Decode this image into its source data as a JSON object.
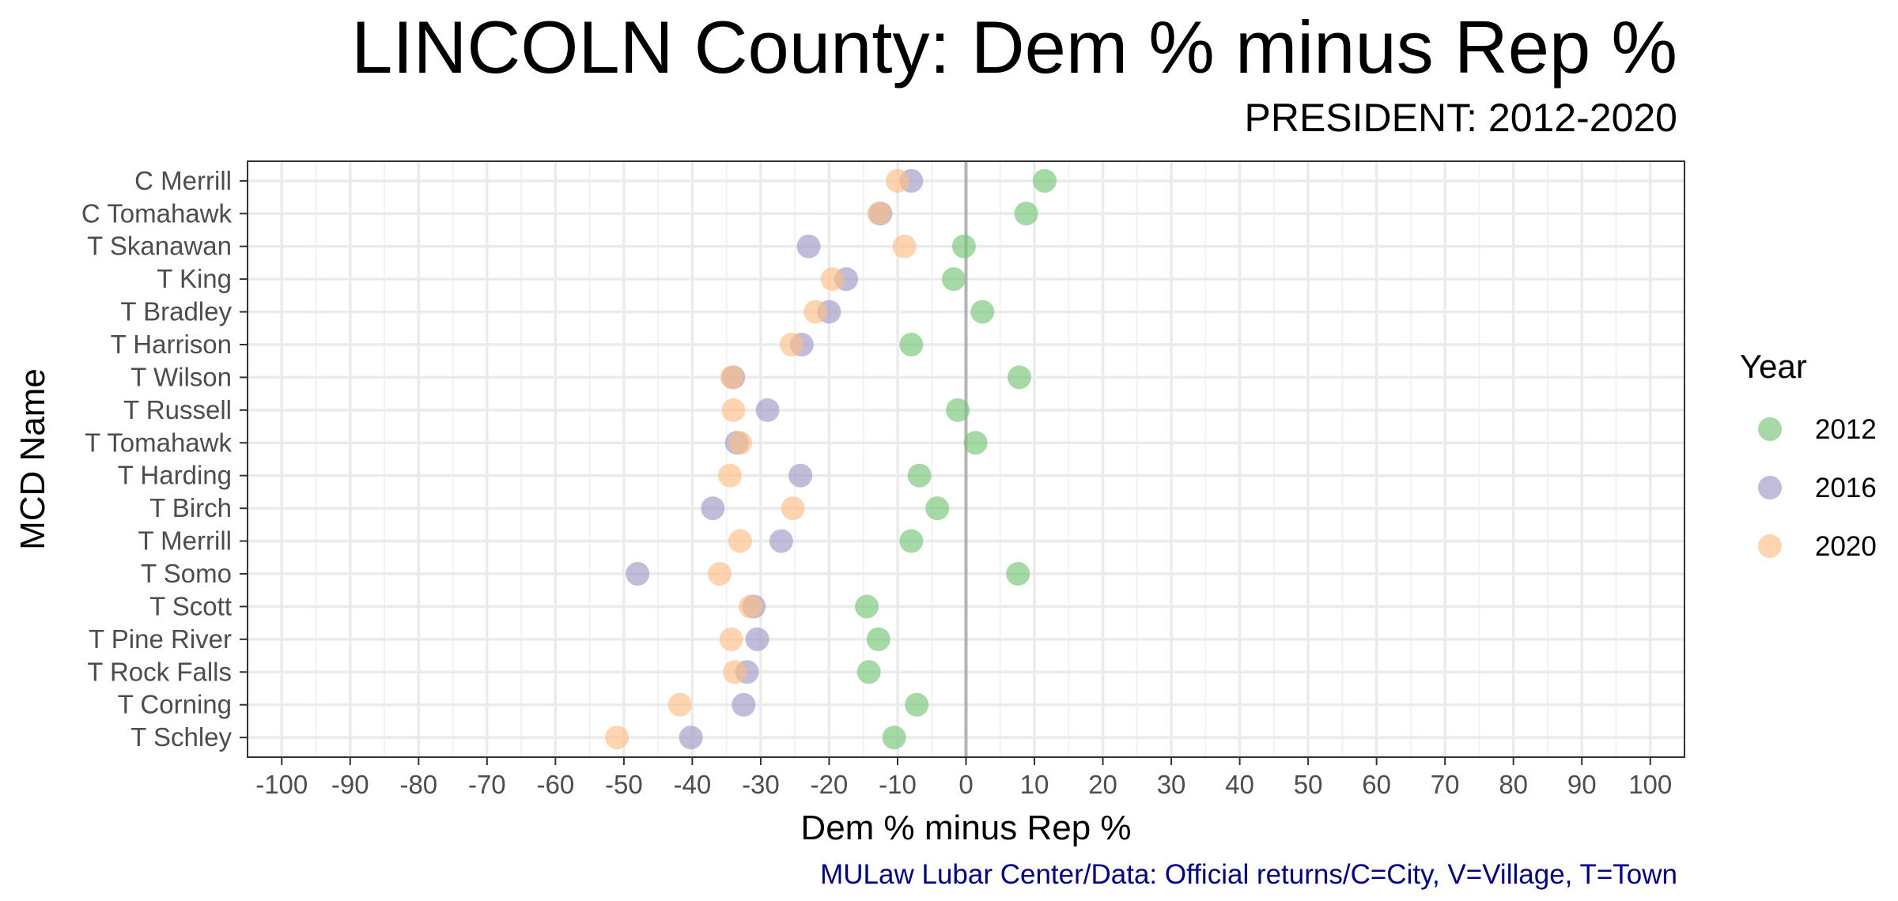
{
  "title": "LINCOLN County: Dem % minus Rep %",
  "subtitle": "PRESIDENT: 2012-2020",
  "caption": "MULaw Lubar Center/Data: Official returns/C=City, V=Village, T=Town",
  "chart_data": {
    "type": "scatter",
    "xlabel": "Dem % minus Rep %",
    "ylabel": "MCD Name",
    "xlim": [
      -105,
      105
    ],
    "x_ticks": [
      -100,
      -90,
      -80,
      -70,
      -60,
      -50,
      -40,
      -30,
      -20,
      -10,
      0,
      10,
      20,
      30,
      40,
      50,
      60,
      70,
      80,
      90,
      100
    ],
    "categories": [
      "C Merrill",
      "C Tomahawk",
      "T Skanawan",
      "T King",
      "T Bradley",
      "T Harrison",
      "T Wilson",
      "T Russell",
      "T Tomahawk",
      "T Harding",
      "T Birch",
      "T Merrill",
      "T Somo",
      "T Scott",
      "T Pine River",
      "T Rock Falls",
      "T Corning",
      "T Schley"
    ],
    "reference_line_x": 0,
    "grid": true,
    "legend": {
      "title": "Year",
      "position": "right"
    },
    "series": [
      {
        "name": "2012",
        "color": "#74c476",
        "values": [
          11.5,
          8.8,
          -0.3,
          -1.8,
          2.4,
          -8,
          7.8,
          -1.2,
          1.4,
          -6.8,
          -4.2,
          -8,
          7.6,
          -14.5,
          -12.8,
          -14.2,
          -7.2,
          -10.5
        ]
      },
      {
        "name": "2016",
        "color": "#9e9ac8",
        "values": [
          -8,
          -12.5,
          -23,
          -17.5,
          -20,
          -24,
          -34,
          -29,
          -33.5,
          -24.2,
          -37,
          -27,
          -48,
          -31,
          -30.5,
          -32,
          -32.5,
          -40.2
        ]
      },
      {
        "name": "2020",
        "color": "#fdbf85",
        "values": [
          -10,
          -12.7,
          -9,
          -19.5,
          -22,
          -25.5,
          -34.2,
          -34,
          -33,
          -34.5,
          -25.3,
          -33,
          -36,
          -31.5,
          -34.3,
          -33.8,
          -41.8,
          -51
        ]
      }
    ]
  }
}
